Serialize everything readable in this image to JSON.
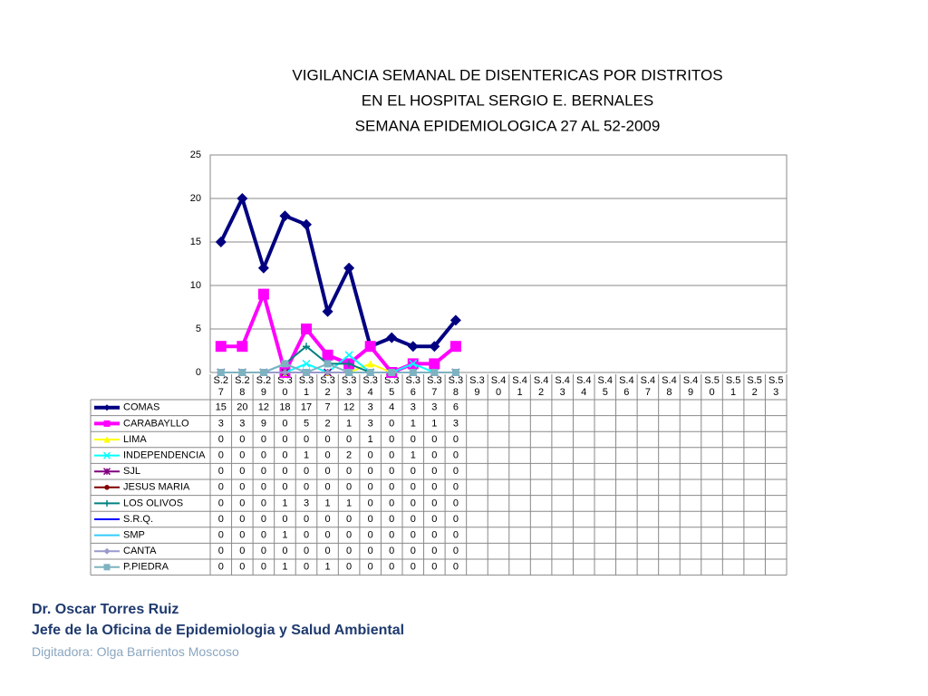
{
  "chart_data": {
    "type": "line",
    "title": [
      "VIGILANCIA SEMANAL DE DISENTERICAS POR DISTRITOS",
      "EN EL HOSPITAL SERGIO E. BERNALES",
      "SEMANA EPIDEMIOLOGICA 27 AL 52-2009"
    ],
    "categories": [
      "S.27",
      "S.28",
      "S.29",
      "S.30",
      "S.31",
      "S.32",
      "S.33",
      "S.34",
      "S.35",
      "S.36",
      "S.37",
      "S.38",
      "S.39",
      "S.40",
      "S.41",
      "S.42",
      "S.43",
      "S.44",
      "S.45",
      "S.46",
      "S.47",
      "S.48",
      "S.49",
      "S.50",
      "S.51",
      "S.52",
      "S.53"
    ],
    "ylim": [
      0,
      25
    ],
    "yticks": [
      0,
      5,
      10,
      15,
      20,
      25
    ],
    "grid": true,
    "series": [
      {
        "name": "COMAS",
        "color": "#000080",
        "marker": "diamond",
        "values": [
          15,
          20,
          12,
          18,
          17,
          7,
          12,
          3,
          4,
          3,
          3,
          6,
          null,
          null,
          null,
          null,
          null,
          null,
          null,
          null,
          null,
          null,
          null,
          null,
          null,
          null,
          null
        ]
      },
      {
        "name": "CARABAYLLO",
        "color": "#ff00ff",
        "marker": "square",
        "values": [
          3,
          3,
          9,
          0,
          5,
          2,
          1,
          3,
          0,
          1,
          1,
          3,
          null,
          null,
          null,
          null,
          null,
          null,
          null,
          null,
          null,
          null,
          null,
          null,
          null,
          null,
          null
        ]
      },
      {
        "name": "LIMA",
        "color": "#ffff00",
        "marker": "triangle",
        "values": [
          0,
          0,
          0,
          0,
          0,
          0,
          0,
          1,
          0,
          0,
          0,
          0,
          null,
          null,
          null,
          null,
          null,
          null,
          null,
          null,
          null,
          null,
          null,
          null,
          null,
          null,
          null
        ]
      },
      {
        "name": "INDEPENDENCIA",
        "color": "#00ffff",
        "marker": "x",
        "values": [
          0,
          0,
          0,
          0,
          1,
          0,
          2,
          0,
          0,
          1,
          0,
          0,
          null,
          null,
          null,
          null,
          null,
          null,
          null,
          null,
          null,
          null,
          null,
          null,
          null,
          null,
          null
        ]
      },
      {
        "name": "SJL",
        "color": "#800080",
        "marker": "star",
        "values": [
          0,
          0,
          0,
          0,
          0,
          0,
          0,
          0,
          0,
          0,
          0,
          0,
          null,
          null,
          null,
          null,
          null,
          null,
          null,
          null,
          null,
          null,
          null,
          null,
          null,
          null,
          null
        ]
      },
      {
        "name": "JESUS MARIA",
        "color": "#800000",
        "marker": "circle",
        "values": [
          0,
          0,
          0,
          0,
          0,
          0,
          0,
          0,
          0,
          0,
          0,
          0,
          null,
          null,
          null,
          null,
          null,
          null,
          null,
          null,
          null,
          null,
          null,
          null,
          null,
          null,
          null
        ]
      },
      {
        "name": "LOS OLIVOS",
        "color": "#008080",
        "marker": "plus",
        "values": [
          0,
          0,
          0,
          1,
          3,
          1,
          1,
          0,
          0,
          0,
          0,
          0,
          null,
          null,
          null,
          null,
          null,
          null,
          null,
          null,
          null,
          null,
          null,
          null,
          null,
          null,
          null
        ]
      },
      {
        "name": "S.R.Q.",
        "color": "#0000ff",
        "marker": "dash",
        "values": [
          0,
          0,
          0,
          0,
          0,
          0,
          0,
          0,
          0,
          0,
          0,
          0,
          null,
          null,
          null,
          null,
          null,
          null,
          null,
          null,
          null,
          null,
          null,
          null,
          null,
          null,
          null
        ]
      },
      {
        "name": "SMP",
        "color": "#33ccff",
        "marker": "dash",
        "values": [
          0,
          0,
          0,
          1,
          0,
          0,
          0,
          0,
          0,
          0,
          0,
          0,
          null,
          null,
          null,
          null,
          null,
          null,
          null,
          null,
          null,
          null,
          null,
          null,
          null,
          null,
          null
        ]
      },
      {
        "name": "CANTA",
        "color": "#9999cc",
        "marker": "diamond",
        "values": [
          0,
          0,
          0,
          0,
          0,
          0,
          0,
          0,
          0,
          0,
          0,
          0,
          null,
          null,
          null,
          null,
          null,
          null,
          null,
          null,
          null,
          null,
          null,
          null,
          null,
          null,
          null
        ]
      },
      {
        "name": "P.PIEDRA",
        "color": "#7fb2c0",
        "marker": "square",
        "values": [
          0,
          0,
          0,
          1,
          0,
          1,
          0,
          0,
          0,
          0,
          0,
          0,
          null,
          null,
          null,
          null,
          null,
          null,
          null,
          null,
          null,
          null,
          null,
          null,
          null,
          null,
          null
        ]
      }
    ]
  },
  "footer": {
    "author": "Dr.  Oscar  Torres Ruiz",
    "position": "Jefe de la Oficina de Epidemiologia y  Salud Ambiental",
    "typist": "Digitadora: Olga Barrientos Moscoso"
  }
}
